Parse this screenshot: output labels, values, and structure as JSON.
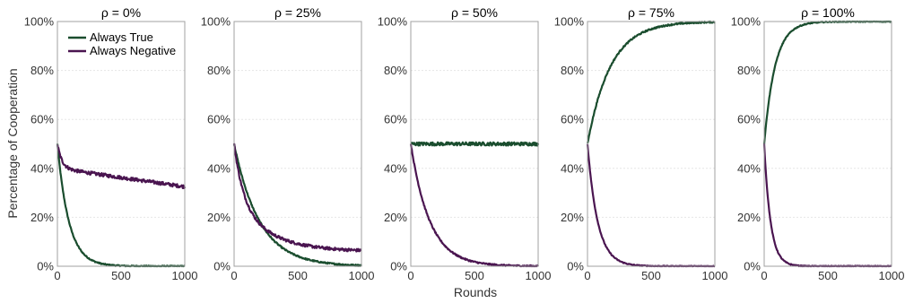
{
  "figure": {
    "xlabel": "Rounds",
    "ylabel": "Percentage of Cooperation"
  },
  "colors": {
    "always_true": "#1a4d2e",
    "always_negative": "#4a1550"
  },
  "legend": {
    "placement": "top-left of first panel",
    "items": [
      "Always True",
      "Always Negative"
    ]
  },
  "chart_data": [
    {
      "type": "line",
      "title": "ρ = 0%",
      "xlim": [
        0,
        1000
      ],
      "ylim": [
        0,
        100
      ],
      "xticks": [
        "0",
        "500",
        "1000"
      ],
      "yticks": [
        "0%",
        "20%",
        "40%",
        "60%",
        "80%",
        "100%"
      ],
      "grid": true,
      "series": [
        {
          "name": "Always True",
          "start": 50,
          "end": 0,
          "tau": 90,
          "noise": 0.25
        },
        {
          "name": "Always Negative",
          "start": 50,
          "end": 30,
          "tau": 35,
          "drift_end": 32.5,
          "noise": 0.7
        }
      ]
    },
    {
      "type": "line",
      "title": "ρ = 25%",
      "xlim": [
        0,
        1000
      ],
      "ylim": [
        0,
        100
      ],
      "xticks": [
        "0",
        "500",
        "1000"
      ],
      "yticks": [
        "0%",
        "20%",
        "40%",
        "60%",
        "80%",
        "100%"
      ],
      "grid": true,
      "series": [
        {
          "name": "Always True",
          "start": 50,
          "end": 0,
          "tau": 200,
          "noise": 0.3
        },
        {
          "name": "Always Negative",
          "start": 50,
          "end": 6,
          "tau": 260,
          "fast": 70,
          "noise": 0.6
        }
      ]
    },
    {
      "type": "line",
      "title": "ρ = 50%",
      "xlim": [
        0,
        1000
      ],
      "ylim": [
        0,
        100
      ],
      "xticks": [
        "0",
        "500",
        "1000"
      ],
      "yticks": [
        "0%",
        "20%",
        "40%",
        "60%",
        "80%",
        "100%"
      ],
      "grid": true,
      "series": [
        {
          "name": "Always True",
          "start": 50,
          "end": 50,
          "tau": 1,
          "noise": 0.7
        },
        {
          "name": "Always Negative",
          "start": 50,
          "end": 0,
          "tau": 150,
          "noise": 0.3
        }
      ]
    },
    {
      "type": "line",
      "title": "ρ = 75%",
      "xlim": [
        0,
        1000
      ],
      "ylim": [
        0,
        100
      ],
      "xticks": [
        "0",
        "500",
        "1000"
      ],
      "yticks": [
        "0%",
        "20%",
        "40%",
        "60%",
        "80%",
        "100%"
      ],
      "grid": true,
      "series": [
        {
          "name": "Always True",
          "start": 50,
          "end": 100,
          "tau": 180,
          "noise": 0.3
        },
        {
          "name": "Always Negative",
          "start": 50,
          "end": 0,
          "tau": 80,
          "noise": 0.2
        }
      ]
    },
    {
      "type": "line",
      "title": "ρ = 100%",
      "xlim": [
        0,
        1000
      ],
      "ylim": [
        0,
        100
      ],
      "xticks": [
        "0",
        "500",
        "1000"
      ],
      "yticks": [
        "0%",
        "20%",
        "40%",
        "60%",
        "80%",
        "100%"
      ],
      "grid": true,
      "series": [
        {
          "name": "Always True",
          "start": 50,
          "end": 100,
          "tau": 85,
          "noise": 0.2
        },
        {
          "name": "Always Negative",
          "start": 50,
          "end": 0,
          "tau": 50,
          "noise": 0.2
        }
      ]
    }
  ]
}
